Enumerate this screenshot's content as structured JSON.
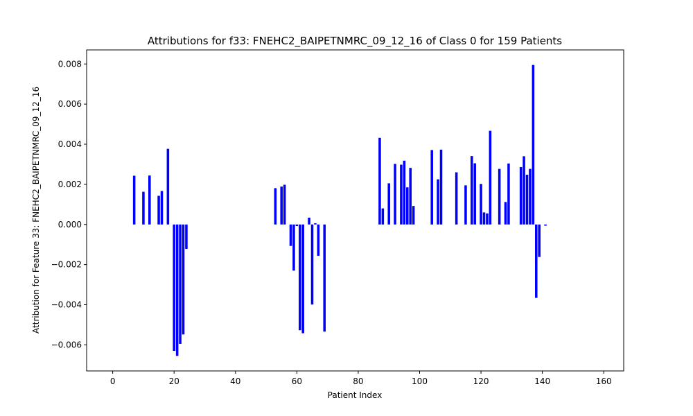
{
  "chart_data": {
    "type": "bar",
    "title": "Attributions for f33: FNEHC2_BAIPETNMRC_09_12_16 of Class 0 for 159 Patients",
    "xlabel": "Patient Index",
    "ylabel": "Attribution for Feature 33: FNEHC2_BAIPETNMRC_09_12_16",
    "xlim": [
      -8.5,
      166.5
    ],
    "ylim": [
      -0.0073,
      0.0087
    ],
    "xticks": [
      0,
      20,
      40,
      60,
      80,
      100,
      120,
      140,
      160
    ],
    "yticks": [
      -0.006,
      -0.004,
      -0.002,
      0.0,
      0.002,
      0.004,
      0.006,
      0.008
    ],
    "ytick_labels": [
      "−0.006",
      "−0.004",
      "−0.002",
      "0.000",
      "0.002",
      "0.004",
      "0.006",
      "0.008"
    ],
    "bar_color": "#0000ff",
    "grid": false,
    "series": [
      {
        "x": [
          7,
          10,
          12,
          15,
          16,
          18,
          20,
          21,
          22,
          23,
          24,
          53,
          55,
          56,
          58,
          59,
          60,
          61,
          62,
          64,
          65,
          66,
          67,
          69,
          87,
          88,
          90,
          92,
          94,
          95,
          96,
          97,
          98,
          104,
          106,
          107,
          112,
          115,
          117,
          118,
          120,
          121,
          122,
          123,
          126,
          128,
          129,
          133,
          134,
          135,
          136,
          137,
          138,
          139,
          141
        ],
        "values": [
          0.00243,
          0.00163,
          0.00244,
          0.00143,
          0.00167,
          0.00377,
          -0.0063,
          -0.00655,
          -0.00595,
          -0.00548,
          -0.00122,
          0.00181,
          0.00189,
          0.00198,
          -0.00107,
          -0.0023,
          -8e-05,
          -0.00527,
          -0.00542,
          0.00034,
          -0.00399,
          6e-05,
          -0.00156,
          -0.00534,
          0.00432,
          0.0008,
          0.00205,
          0.00302,
          0.00298,
          0.00318,
          0.00185,
          0.00282,
          0.00092,
          0.00371,
          0.00225,
          0.00373,
          0.0026,
          0.00195,
          0.00341,
          0.00305,
          0.00202,
          0.0006,
          0.00055,
          0.00467,
          0.00277,
          0.00112,
          0.00304,
          0.00286,
          0.0034,
          0.00248,
          0.00277,
          0.00795,
          -0.00366,
          -0.00162,
          -6e-05
        ]
      }
    ]
  }
}
